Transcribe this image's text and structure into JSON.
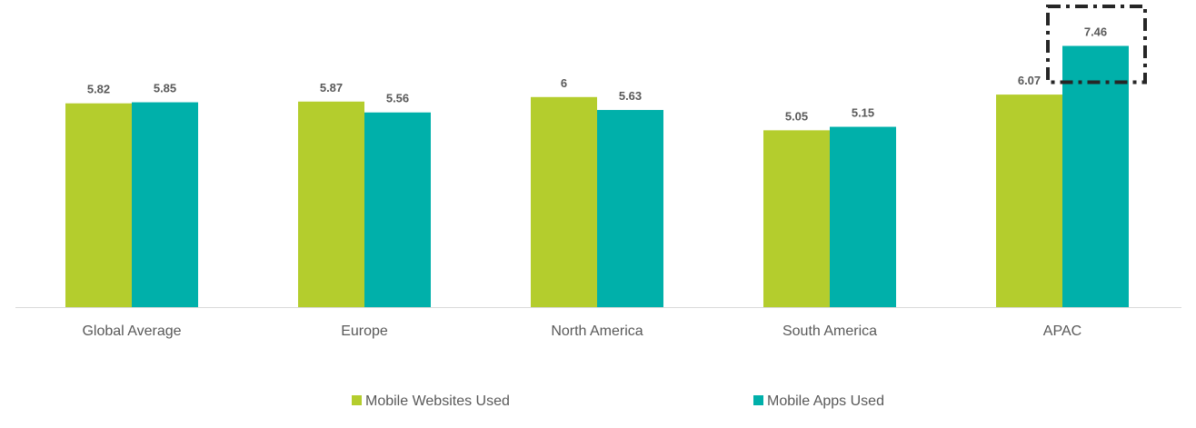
{
  "chart_data": {
    "type": "bar",
    "categories": [
      "Global Average",
      "Europe",
      "North America",
      "South America",
      "APAC"
    ],
    "series": [
      {
        "name": "Mobile Websites Used",
        "color": "#b4cd2d",
        "values": [
          5.82,
          5.87,
          6,
          5.05,
          6.07
        ],
        "labels": [
          "5.82",
          "5.87",
          "6",
          "5.05",
          "6.07"
        ]
      },
      {
        "name": "Mobile Apps Used",
        "color": "#00b0aa",
        "values": [
          5.85,
          5.56,
          5.63,
          5.15,
          7.46
        ],
        "labels": [
          "5.85",
          "5.56",
          "5.63",
          "5.15",
          "7.46"
        ]
      }
    ],
    "ylim": [
      0,
      8.2
    ],
    "grid": false,
    "legend_position": "bottom",
    "highlight": {
      "category": "APAC",
      "series": "Mobile Apps Used",
      "style": "dash-dot box"
    }
  }
}
